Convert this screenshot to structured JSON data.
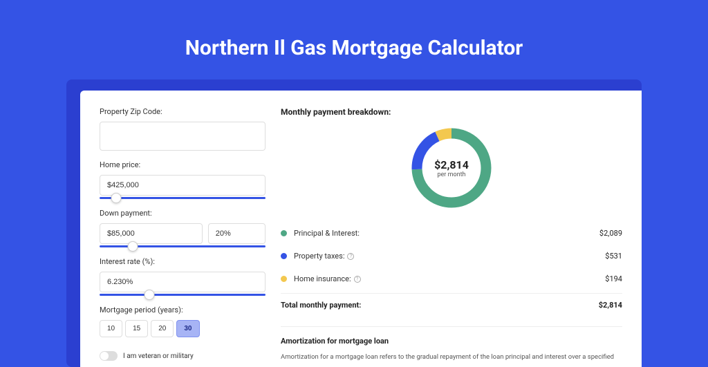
{
  "page_title": "Northern Il Gas Mortgage Calculator",
  "form": {
    "zip_label": "Property Zip Code:",
    "zip_value": "",
    "home_price_label": "Home price:",
    "home_price_value": "$425,000",
    "home_price_slider_pct": 10,
    "down_payment_label": "Down payment:",
    "down_payment_value": "$85,000",
    "down_payment_pct_value": "20%",
    "down_payment_slider_pct": 20,
    "interest_label": "Interest rate (%):",
    "interest_value": "6.230%",
    "interest_slider_pct": 30,
    "period_label": "Mortgage period (years):",
    "periods": [
      "10",
      "15",
      "20",
      "30"
    ],
    "period_selected_index": 3,
    "veteran_label": "I am veteran or military",
    "veteran_on": false
  },
  "breakdown": {
    "title": "Monthly payment breakdown:",
    "donut": {
      "value": "$2,814",
      "sub": "per month",
      "radius": 50,
      "thickness": 15,
      "segments": [
        {
          "label": "Principal & Interest:",
          "value": "$2,089",
          "num": 2089,
          "color": "#4ea785"
        },
        {
          "label": "Property taxes:",
          "value": "$531",
          "num": 531,
          "color": "#3453e5",
          "info": true
        },
        {
          "label": "Home insurance:",
          "value": "$194",
          "num": 194,
          "color": "#f3c84f",
          "info": true
        }
      ],
      "total": 2814
    },
    "total_label": "Total monthly payment:",
    "total_value": "$2,814"
  },
  "amort": {
    "title": "Amortization for mortgage loan",
    "text": "Amortization for a mortgage loan refers to the gradual repayment of the loan principal and interest over a specified"
  }
}
